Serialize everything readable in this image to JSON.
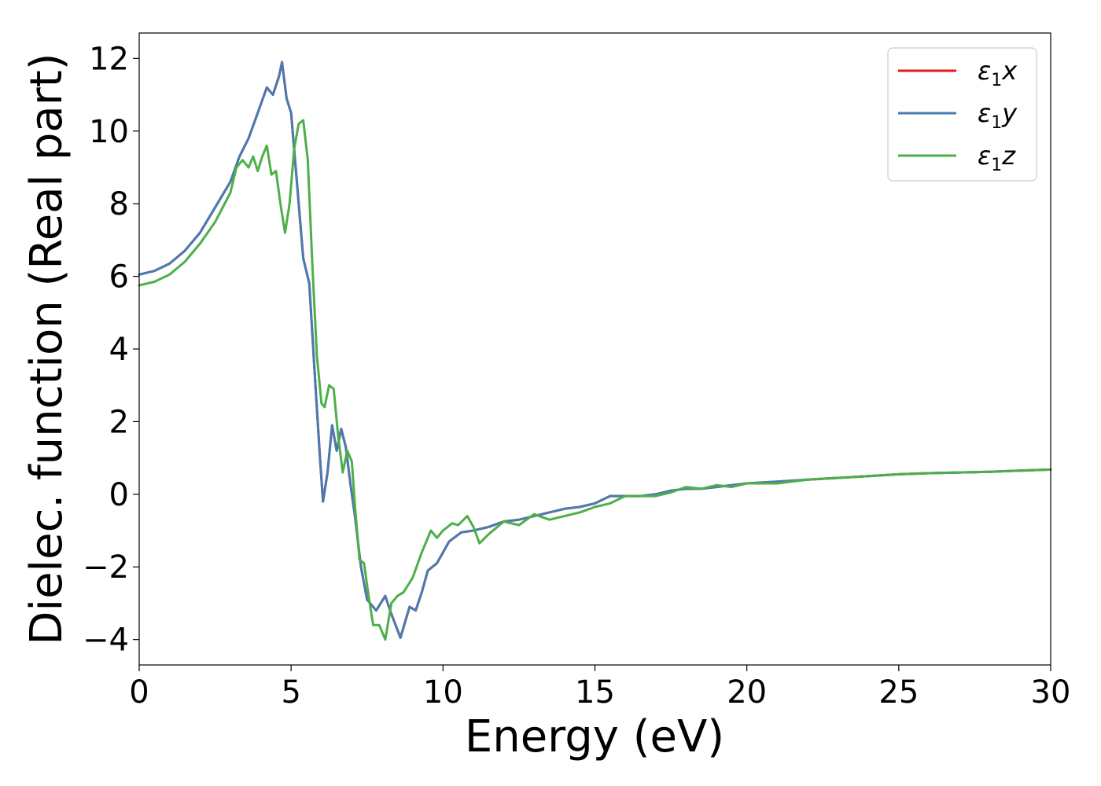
{
  "chart_data": {
    "type": "line",
    "xlabel": "Energy (eV)",
    "ylabel": "Dielec. function (Real part)",
    "xlim": [
      0,
      30
    ],
    "ylim": [
      -4.7,
      12.7
    ],
    "xticks": [
      0,
      5,
      10,
      15,
      20,
      25,
      30
    ],
    "yticks": [
      12,
      10,
      8,
      6,
      4,
      2,
      0,
      -2,
      -4
    ],
    "grid": false,
    "legend_position": "top-right",
    "series": [
      {
        "name": "ε1x",
        "name_base": "ε",
        "name_sub": "1",
        "name_var": "x",
        "color": "#e41a1c",
        "x": [
          0,
          0.5,
          1,
          1.5,
          2,
          2.5,
          3,
          3.3,
          3.6,
          3.9,
          4.2,
          4.4,
          4.6,
          4.7,
          4.85,
          5.0,
          5.2,
          5.4,
          5.6,
          5.8,
          5.95,
          6.05,
          6.2,
          6.35,
          6.5,
          6.65,
          6.8,
          6.95,
          7.1,
          7.3,
          7.5,
          7.8,
          8.1,
          8.3,
          8.6,
          8.9,
          9.1,
          9.3,
          9.5,
          9.8,
          10.2,
          10.6,
          11.0,
          11.5,
          12.0,
          12.5,
          13.0,
          13.5,
          14.0,
          14.5,
          15.0,
          15.5,
          16.0,
          16.5,
          17.0,
          17.5,
          18.0,
          18.5,
          19.0,
          19.5,
          20.0,
          21.0,
          22.0,
          23.0,
          24.0,
          25.0,
          26.0,
          27.0,
          28.0,
          29.0,
          30.0
        ],
        "y": [
          6.05,
          6.15,
          6.35,
          6.7,
          7.2,
          7.9,
          8.6,
          9.3,
          9.8,
          10.5,
          11.2,
          11.0,
          11.5,
          11.9,
          10.9,
          10.5,
          8.5,
          6.5,
          5.8,
          3.0,
          1.0,
          -0.2,
          0.6,
          1.9,
          1.2,
          1.8,
          1.3,
          0.3,
          -0.6,
          -2.0,
          -2.9,
          -3.2,
          -2.8,
          -3.3,
          -3.95,
          -3.1,
          -3.2,
          -2.7,
          -2.1,
          -1.9,
          -1.3,
          -1.05,
          -1.0,
          -0.9,
          -0.75,
          -0.7,
          -0.6,
          -0.5,
          -0.4,
          -0.35,
          -0.25,
          -0.05,
          -0.05,
          -0.05,
          0.0,
          0.1,
          0.15,
          0.15,
          0.2,
          0.25,
          0.3,
          0.35,
          0.4,
          0.45,
          0.5,
          0.55,
          0.58,
          0.6,
          0.62,
          0.65,
          0.68
        ]
      },
      {
        "name": "ε1y",
        "name_base": "ε",
        "name_sub": "1",
        "name_var": "y",
        "color": "#4a7bb0",
        "x": [
          0,
          0.5,
          1,
          1.5,
          2,
          2.5,
          3,
          3.3,
          3.6,
          3.9,
          4.2,
          4.4,
          4.6,
          4.7,
          4.85,
          5.0,
          5.2,
          5.4,
          5.6,
          5.8,
          5.95,
          6.05,
          6.2,
          6.35,
          6.5,
          6.65,
          6.8,
          6.95,
          7.1,
          7.3,
          7.5,
          7.8,
          8.1,
          8.3,
          8.6,
          8.9,
          9.1,
          9.3,
          9.5,
          9.8,
          10.2,
          10.6,
          11.0,
          11.5,
          12.0,
          12.5,
          13.0,
          13.5,
          14.0,
          14.5,
          15.0,
          15.5,
          16.0,
          16.5,
          17.0,
          17.5,
          18.0,
          18.5,
          19.0,
          19.5,
          20.0,
          21.0,
          22.0,
          23.0,
          24.0,
          25.0,
          26.0,
          27.0,
          28.0,
          29.0,
          30.0
        ],
        "y": [
          6.05,
          6.15,
          6.35,
          6.7,
          7.2,
          7.9,
          8.6,
          9.3,
          9.8,
          10.5,
          11.2,
          11.0,
          11.5,
          11.9,
          10.9,
          10.5,
          8.5,
          6.5,
          5.8,
          3.0,
          1.0,
          -0.2,
          0.6,
          1.9,
          1.2,
          1.8,
          1.3,
          0.3,
          -0.6,
          -2.0,
          -2.9,
          -3.2,
          -2.8,
          -3.3,
          -3.95,
          -3.1,
          -3.2,
          -2.7,
          -2.1,
          -1.9,
          -1.3,
          -1.05,
          -1.0,
          -0.9,
          -0.75,
          -0.7,
          -0.6,
          -0.5,
          -0.4,
          -0.35,
          -0.25,
          -0.05,
          -0.05,
          -0.05,
          0.0,
          0.1,
          0.15,
          0.15,
          0.2,
          0.25,
          0.3,
          0.35,
          0.4,
          0.45,
          0.5,
          0.55,
          0.58,
          0.6,
          0.62,
          0.65,
          0.68
        ]
      },
      {
        "name": "ε1z",
        "name_base": "ε",
        "name_sub": "1",
        "name_var": "z",
        "color": "#4daf4a",
        "x": [
          0,
          0.5,
          1,
          1.5,
          2,
          2.5,
          3,
          3.2,
          3.4,
          3.6,
          3.75,
          3.9,
          4.05,
          4.2,
          4.35,
          4.5,
          4.65,
          4.8,
          4.95,
          5.1,
          5.25,
          5.4,
          5.55,
          5.7,
          5.85,
          6.0,
          6.1,
          6.25,
          6.4,
          6.55,
          6.7,
          6.85,
          7.0,
          7.1,
          7.25,
          7.4,
          7.55,
          7.7,
          7.9,
          8.1,
          8.3,
          8.5,
          8.7,
          9.0,
          9.3,
          9.6,
          9.8,
          10.0,
          10.3,
          10.5,
          10.8,
          11.0,
          11.2,
          11.5,
          12.0,
          12.5,
          13.0,
          13.5,
          14.0,
          14.5,
          15.0,
          15.5,
          16.0,
          16.5,
          17.0,
          17.5,
          18.0,
          18.5,
          19.0,
          19.5,
          20.0,
          21.0,
          22.0,
          23.0,
          24.0,
          25.0,
          26.0,
          27.0,
          28.0,
          29.0,
          30.0
        ],
        "y": [
          5.75,
          5.85,
          6.05,
          6.4,
          6.9,
          7.5,
          8.3,
          9.0,
          9.2,
          9.0,
          9.3,
          8.9,
          9.3,
          9.6,
          8.8,
          8.9,
          8.0,
          7.2,
          8.0,
          9.5,
          10.2,
          10.3,
          9.2,
          6.3,
          3.8,
          2.5,
          2.4,
          3.0,
          2.9,
          1.6,
          0.6,
          1.2,
          0.9,
          -0.3,
          -1.8,
          -1.9,
          -2.8,
          -3.6,
          -3.6,
          -4.0,
          -3.0,
          -2.8,
          -2.7,
          -2.3,
          -1.6,
          -1.0,
          -1.2,
          -1.0,
          -0.8,
          -0.85,
          -0.6,
          -0.9,
          -1.35,
          -1.1,
          -0.75,
          -0.85,
          -0.55,
          -0.7,
          -0.6,
          -0.5,
          -0.35,
          -0.25,
          -0.05,
          -0.05,
          -0.05,
          0.05,
          0.2,
          0.15,
          0.25,
          0.2,
          0.3,
          0.3,
          0.4,
          0.45,
          0.5,
          0.55,
          0.58,
          0.6,
          0.62,
          0.65,
          0.68
        ]
      }
    ]
  }
}
